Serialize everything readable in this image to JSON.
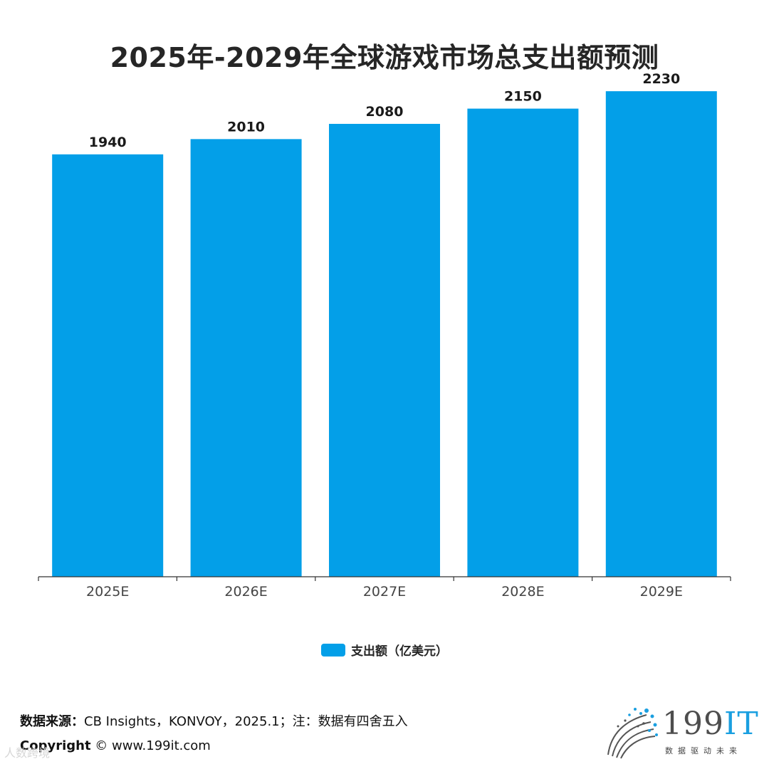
{
  "chart_data": {
    "type": "bar",
    "title": "2025年-2029年全球游戏市场总支出额预测",
    "categories": [
      "2025E",
      "2026E",
      "2027E",
      "2028E",
      "2029E"
    ],
    "series": [
      {
        "name": "支出额（亿美元）",
        "values": [
          1940,
          2010,
          2080,
          2150,
          2230
        ],
        "color": "#039fe8"
      }
    ],
    "xlabel": "",
    "ylabel": "",
    "ylim": [
      0,
      2420
    ],
    "grid": false,
    "legend": "bottom-center"
  },
  "footer": {
    "source_label": "数据来源：",
    "source_text": "CB Insights，KONVOY，2025.1；注：数据有四舍五入",
    "copyright_label": "Copyright",
    "copyright_text": "© www.199it.com"
  },
  "watermark": {
    "text": "人数跨境"
  },
  "logo": {
    "brand_main": "199",
    "brand_it": "IT",
    "tagline": "数据驱动未来"
  },
  "colors": {
    "bar": "#039fe8",
    "axis": "#333333",
    "logo_accent": "#1a9fe0"
  }
}
